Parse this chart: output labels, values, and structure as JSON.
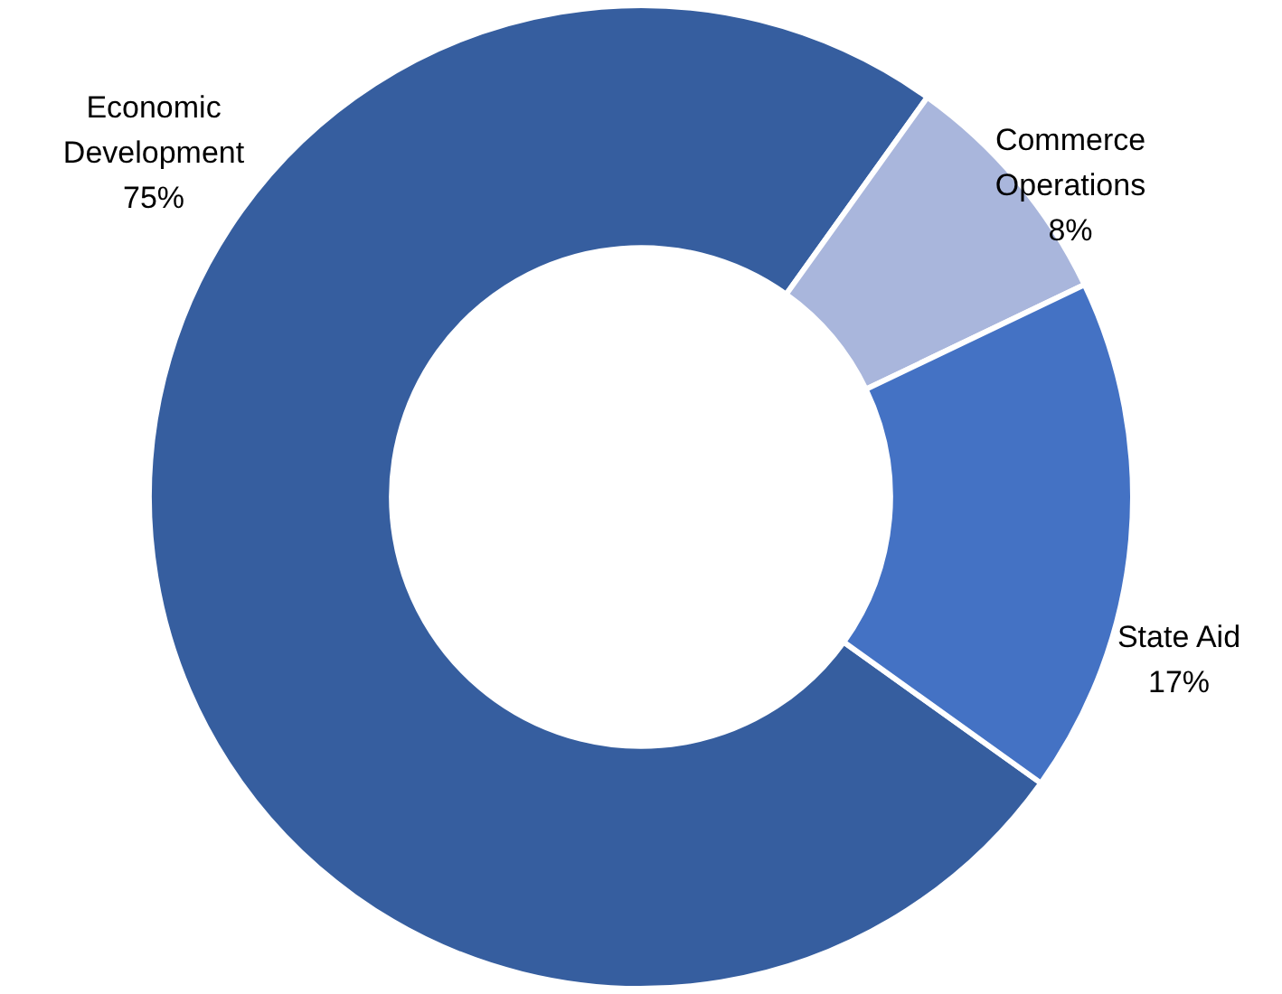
{
  "chart_data": {
    "type": "donut",
    "categories": [
      "Economic Development",
      "Commerce Operations",
      "State Aid"
    ],
    "values": [
      75,
      8,
      17
    ],
    "value_labels": [
      "75%",
      "8%",
      "17%"
    ],
    "colors": [
      "#365e9f",
      "#a9b6dc",
      "#4472c4"
    ]
  }
}
